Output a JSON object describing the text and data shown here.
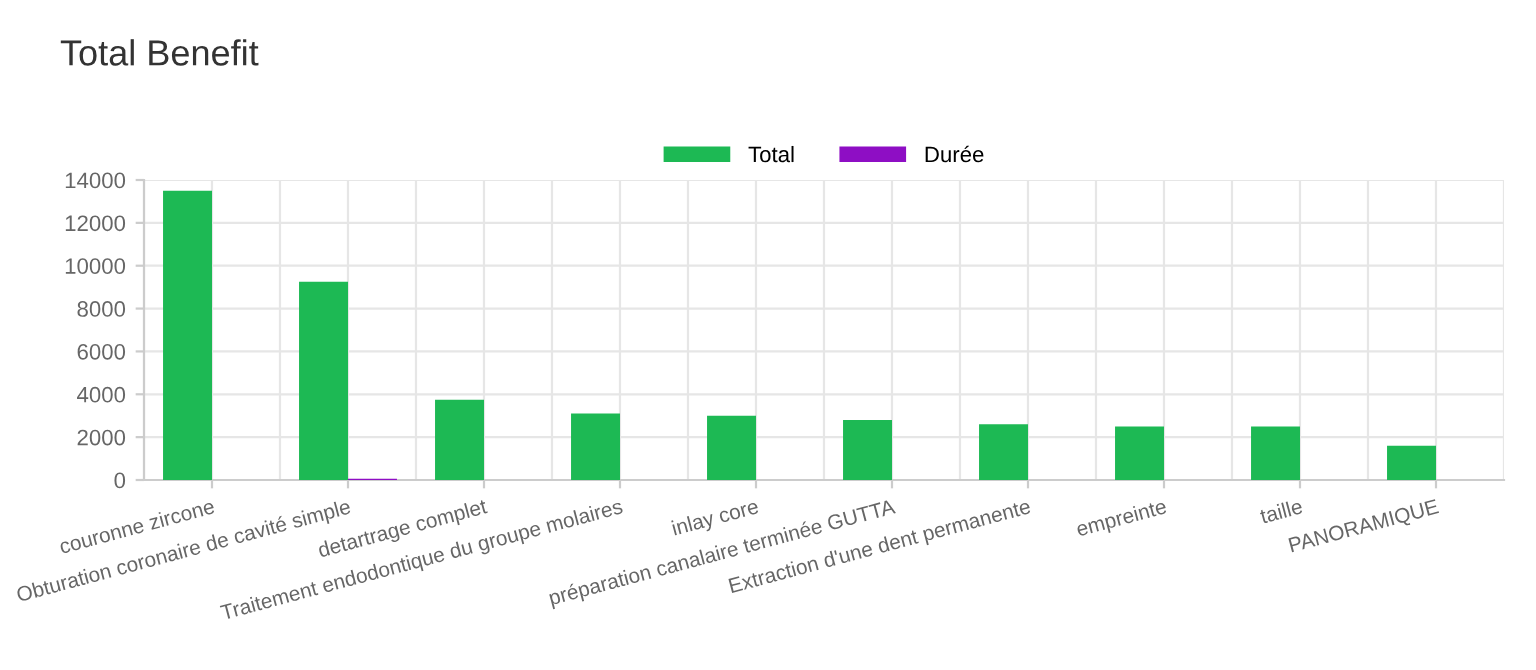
{
  "chart_data": {
    "type": "bar",
    "title": "Total Benefit",
    "categories": [
      "couronne zircone",
      "Obturation coronaire de cavité simple",
      "detartrage complet",
      "Traitement endodontique du groupe molaires",
      "inlay core",
      "préparation canalaire terminée GUTTA",
      "Extraction d'une dent permanente",
      "empreinte",
      "taille",
      "PANORAMIQUE"
    ],
    "series": [
      {
        "name": "Total",
        "color": "#1db954",
        "values": [
          13500,
          9250,
          3750,
          3100,
          3000,
          2800,
          2600,
          2500,
          2500,
          1600
        ]
      },
      {
        "name": "Durée",
        "color": "#8e0ec4",
        "values": [
          0,
          60,
          0,
          0,
          0,
          0,
          0,
          0,
          0,
          0
        ]
      }
    ],
    "ylim": [
      0,
      14000
    ],
    "yticks": [
      0,
      2000,
      4000,
      6000,
      8000,
      10000,
      12000,
      14000
    ],
    "grid": true,
    "legend": "top"
  }
}
